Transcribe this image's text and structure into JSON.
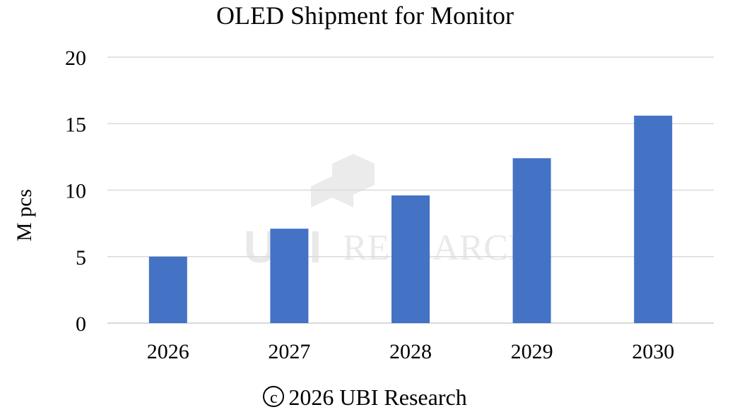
{
  "chart_data": {
    "type": "bar",
    "title": "OLED Shipment for Monitor",
    "xlabel": "",
    "ylabel": "M pcs",
    "categories": [
      "2026",
      "2027",
      "2028",
      "2029",
      "2030"
    ],
    "values": [
      5.0,
      7.1,
      9.6,
      12.4,
      15.6
    ],
    "ylim": [
      0,
      20
    ],
    "yticks": [
      "0",
      "5",
      "10",
      "15",
      "20"
    ],
    "grid": true,
    "bar_color": "#4472c4",
    "grid_color": "#d9d9d9"
  },
  "watermark": {
    "logo_text": "UBI",
    "text": "RESEARCH"
  },
  "footer": {
    "symbol": "c",
    "text": "2026 UBI Research"
  }
}
